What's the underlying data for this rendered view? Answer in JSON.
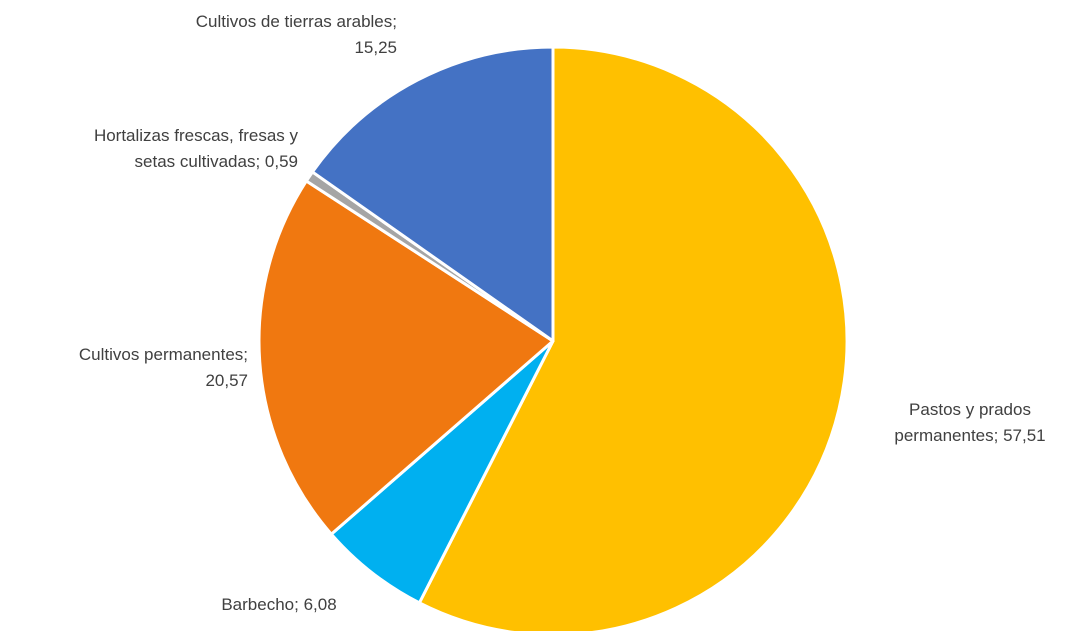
{
  "chart_data": {
    "type": "pie",
    "start_angle_deg": 0,
    "direction": "clockwise",
    "slices": [
      {
        "label": "Pastos y prados permanentes",
        "value": 57.51,
        "value_text": "57,51",
        "color": "#FFC000",
        "label_lines": [
          "Pastos y prados",
          "permanentes; 57,51"
        ],
        "label_anchor": "middle"
      },
      {
        "label": "Barbecho",
        "value": 6.08,
        "value_text": "6,08",
        "color": "#00B0F0",
        "label_lines": [
          "Barbecho; 6,08"
        ],
        "label_anchor": "middle"
      },
      {
        "label": "Cultivos permanentes",
        "value": 20.57,
        "value_text": "20,57",
        "color": "#F07810",
        "label_lines": [
          "Cultivos permanentes;",
          "20,57"
        ],
        "label_anchor": "end"
      },
      {
        "label": "Hortalizas frescas, fresas y setas cultivadas",
        "value": 0.59,
        "value_text": "0,59",
        "color": "#A5A5A5",
        "label_lines": [
          "Hortalizas frescas, fresas y",
          "setas cultivadas; 0,59"
        ],
        "label_anchor": "end"
      },
      {
        "label": "Cultivos de tierras arables",
        "value": 15.25,
        "value_text": "15,25",
        "color": "#4472C4",
        "label_lines": [
          "Cultivos de tierras arables;",
          "15,25"
        ],
        "label_anchor": "end"
      }
    ]
  }
}
